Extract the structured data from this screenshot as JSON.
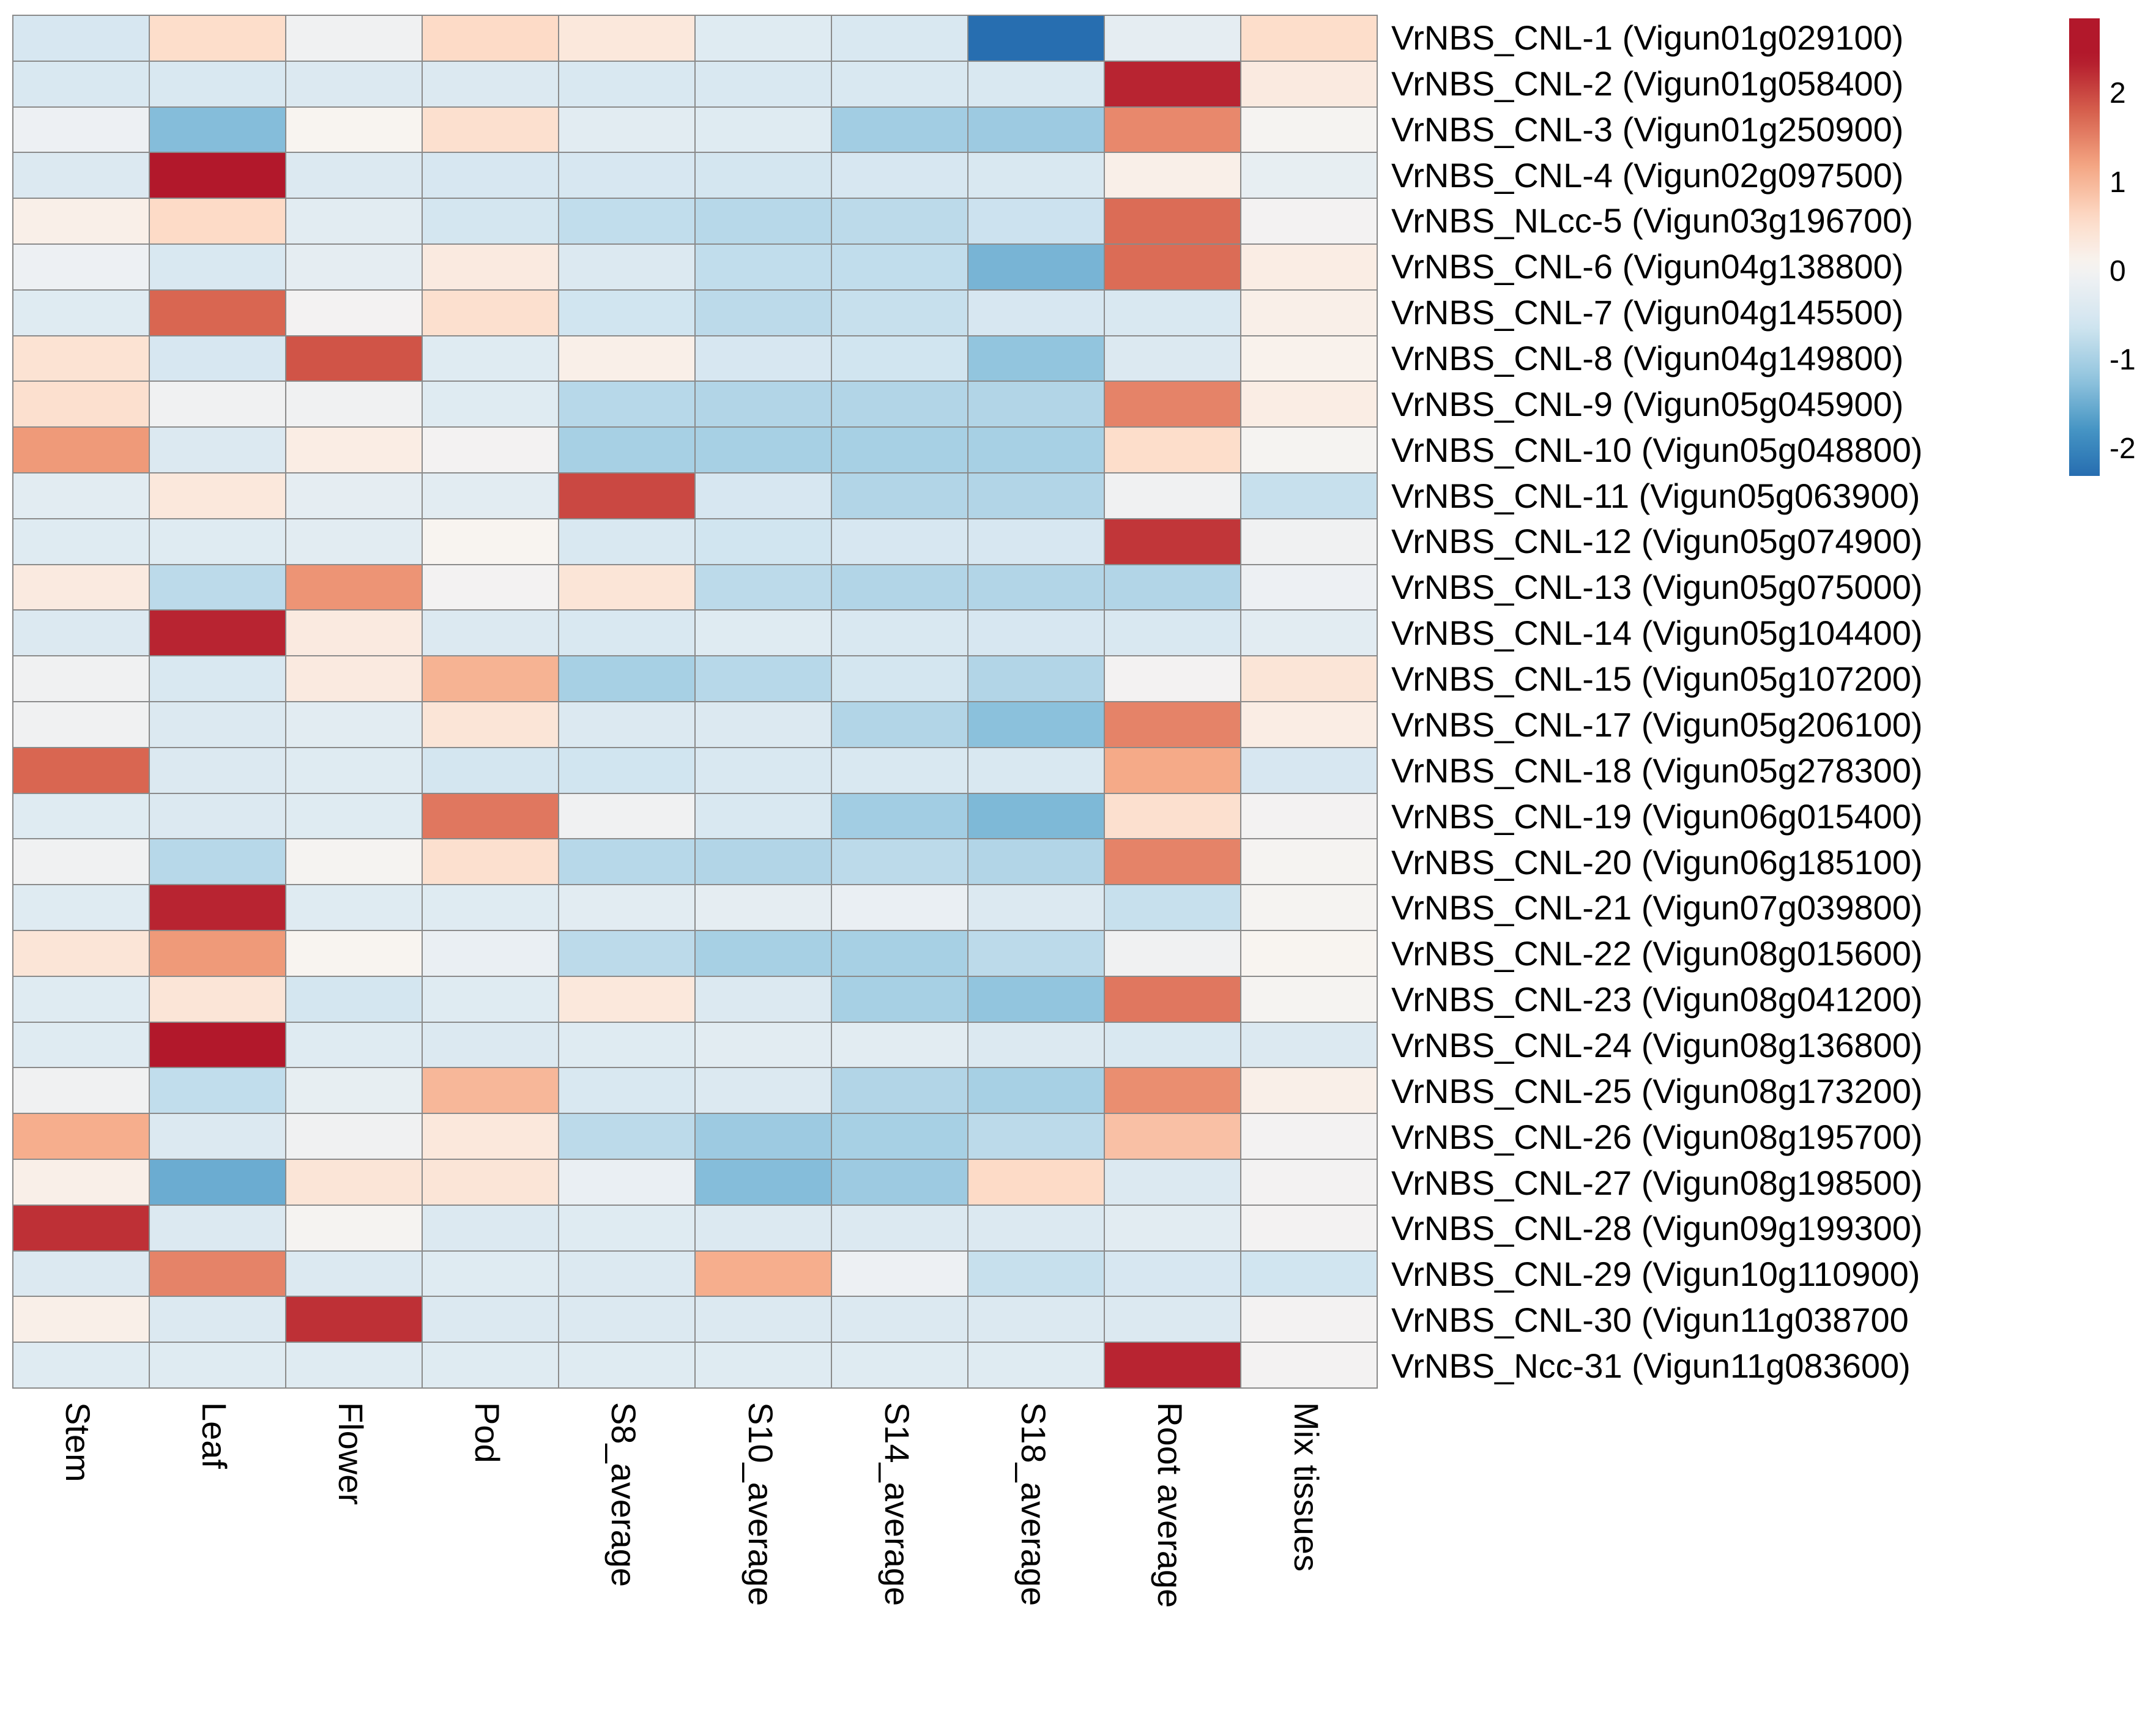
{
  "chart_data": {
    "type": "heatmap",
    "title": "",
    "columns": [
      "Stem",
      "Leaf",
      "Flower",
      "Pod",
      "S8_average",
      "S10_average",
      "S14_average",
      "S18_average",
      "Root average",
      "Mix tissues"
    ],
    "rows": [
      "VrNBS_CNL-1 (Vigun01g029100)",
      "VrNBS_CNL-2 (Vigun01g058400)",
      "VrNBS_CNL-3 (Vigun01g250900)",
      "VrNBS_CNL-4 (Vigun02g097500)",
      "VrNBS_NLcc-5 (Vigun03g196700)",
      "VrNBS_CNL-6 (Vigun04g138800)",
      "VrNBS_CNL-7 (Vigun04g145500)",
      "VrNBS_CNL-8 (Vigun04g149800)",
      "VrNBS_CNL-9  (Vigun05g045900)",
      "VrNBS_CNL-10 (Vigun05g048800)",
      "VrNBS_CNL-11 (Vigun05g063900)",
      "VrNBS_CNL-12 (Vigun05g074900)",
      "VrNBS_CNL-13 (Vigun05g075000)",
      "VrNBS_CNL-14 (Vigun05g104400)",
      "VrNBS_CNL-15 (Vigun05g107200)",
      "VrNBS_CNL-17 (Vigun05g206100)",
      "VrNBS_CNL-18 (Vigun05g278300)",
      "VrNBS_CNL-19 (Vigun06g015400)",
      "VrNBS_CNL-20 (Vigun06g185100)",
      "VrNBS_CNL-21 (Vigun07g039800)",
      "VrNBS_CNL-22 (Vigun08g015600)",
      "VrNBS_CNL-23 (Vigun08g041200)",
      "VrNBS_CNL-24 (Vigun08g136800)",
      "VrNBS_CNL-25 (Vigun08g173200)",
      "VrNBS_CNL-26 (Vigun08g195700)",
      "VrNBS_CNL-27 (Vigun08g198500)",
      "VrNBS_CNL-28 (Vigun09g199300)",
      "VrNBS_CNL-29 (Vigun10g110900)",
      "VrNBS_CNL-30 (Vigun11g038700",
      "VrNBS_Ncc-31 (Vigun11g083600)"
    ],
    "values": [
      [
        -0.5,
        0.55,
        -0.05,
        0.6,
        0.35,
        -0.35,
        -0.45,
        -2.3,
        -0.25,
        0.55
      ],
      [
        -0.45,
        -0.45,
        -0.4,
        -0.4,
        -0.45,
        -0.45,
        -0.45,
        -0.45,
        2.3,
        0.3
      ],
      [
        -0.1,
        -1.3,
        0.1,
        0.5,
        -0.3,
        -0.35,
        -1.05,
        -1.1,
        1.45,
        0.05
      ],
      [
        -0.4,
        2.45,
        -0.4,
        -0.5,
        -0.5,
        -0.55,
        -0.5,
        -0.45,
        0.2,
        -0.2
      ],
      [
        0.2,
        0.6,
        -0.3,
        -0.55,
        -0.75,
        -0.85,
        -0.8,
        -0.65,
        1.7,
        0.0
      ],
      [
        -0.1,
        -0.45,
        -0.25,
        0.3,
        -0.4,
        -0.75,
        -0.75,
        -1.4,
        1.7,
        0.25
      ],
      [
        -0.35,
        1.75,
        0.0,
        0.5,
        -0.6,
        -0.8,
        -0.7,
        -0.5,
        -0.45,
        0.2
      ],
      [
        0.45,
        -0.5,
        1.9,
        -0.35,
        0.2,
        -0.5,
        -0.6,
        -1.2,
        -0.4,
        0.15
      ],
      [
        0.5,
        -0.05,
        -0.05,
        -0.35,
        -0.85,
        -0.9,
        -0.9,
        -0.9,
        1.5,
        0.25
      ],
      [
        1.3,
        -0.4,
        0.25,
        0.0,
        -1.0,
        -1.0,
        -1.0,
        -1.0,
        0.55,
        0.05
      ],
      [
        -0.3,
        0.35,
        -0.25,
        -0.3,
        2.0,
        -0.5,
        -0.9,
        -0.9,
        -0.05,
        -0.7
      ],
      [
        -0.35,
        -0.35,
        -0.3,
        0.1,
        -0.45,
        -0.6,
        -0.5,
        -0.5,
        2.15,
        -0.05
      ],
      [
        0.3,
        -0.8,
        1.35,
        0.0,
        0.4,
        -0.8,
        -0.9,
        -0.9,
        -0.9,
        -0.1
      ],
      [
        -0.4,
        2.3,
        0.3,
        -0.4,
        -0.45,
        -0.35,
        -0.45,
        -0.5,
        -0.45,
        -0.3
      ],
      [
        -0.05,
        -0.45,
        0.3,
        1.05,
        -1.0,
        -0.85,
        -0.55,
        -0.9,
        0.0,
        0.4
      ],
      [
        -0.05,
        -0.4,
        -0.3,
        0.4,
        -0.4,
        -0.4,
        -0.9,
        -1.25,
        1.5,
        0.25
      ],
      [
        1.75,
        -0.4,
        -0.35,
        -0.55,
        -0.6,
        -0.45,
        -0.45,
        -0.45,
        1.15,
        -0.5
      ],
      [
        -0.35,
        -0.4,
        -0.35,
        1.6,
        -0.05,
        -0.45,
        -1.05,
        -1.35,
        0.5,
        0.0
      ],
      [
        -0.05,
        -0.85,
        0.05,
        0.5,
        -0.85,
        -0.9,
        -0.8,
        -0.9,
        1.5,
        0.05
      ],
      [
        -0.35,
        2.3,
        -0.35,
        -0.35,
        -0.3,
        -0.25,
        -0.15,
        -0.4,
        -0.7,
        0.05
      ],
      [
        0.4,
        1.3,
        0.1,
        -0.15,
        -0.8,
        -1.0,
        -1.0,
        -0.8,
        -0.05,
        0.1
      ],
      [
        -0.35,
        0.4,
        -0.55,
        -0.35,
        0.35,
        -0.4,
        -1.0,
        -1.2,
        1.6,
        0.05
      ],
      [
        -0.35,
        2.5,
        -0.35,
        -0.4,
        -0.35,
        -0.3,
        -0.3,
        -0.4,
        -0.45,
        -0.4
      ],
      [
        -0.05,
        -0.75,
        -0.2,
        1.0,
        -0.45,
        -0.4,
        -0.9,
        -1.0,
        1.4,
        0.2
      ],
      [
        1.1,
        -0.4,
        -0.05,
        0.35,
        -0.8,
        -1.1,
        -1.0,
        -0.8,
        0.9,
        0.0
      ],
      [
        0.2,
        -1.5,
        0.4,
        0.4,
        -0.15,
        -1.3,
        -1.1,
        0.6,
        -0.4,
        0.0
      ],
      [
        2.2,
        -0.4,
        0.05,
        -0.4,
        -0.35,
        -0.4,
        -0.4,
        -0.4,
        -0.3,
        0.0
      ],
      [
        -0.4,
        1.5,
        -0.4,
        -0.35,
        -0.4,
        1.1,
        -0.1,
        -0.7,
        -0.5,
        -0.6
      ],
      [
        0.2,
        -0.4,
        2.2,
        -0.4,
        -0.4,
        -0.4,
        -0.4,
        -0.4,
        -0.4,
        0.0
      ],
      [
        -0.35,
        -0.35,
        -0.35,
        -0.35,
        -0.35,
        -0.35,
        -0.35,
        -0.35,
        2.3,
        0.0
      ]
    ],
    "color_scale": {
      "type": "diverging",
      "palette_name": "RdBu",
      "anchors": [
        {
          "value": -2.4,
          "color": "#2166ac"
        },
        {
          "value": -1.8,
          "color": "#4393c3"
        },
        {
          "value": -1.2,
          "color": "#92c5de"
        },
        {
          "value": -0.6,
          "color": "#d1e5f0"
        },
        {
          "value": -0.1,
          "color": "#edf0f3"
        },
        {
          "value": 0.1,
          "color": "#f8f4f0"
        },
        {
          "value": 0.6,
          "color": "#fddbc7"
        },
        {
          "value": 1.2,
          "color": "#f4a582"
        },
        {
          "value": 1.8,
          "color": "#d6604d"
        },
        {
          "value": 2.4,
          "color": "#b2182b"
        }
      ],
      "colorbar_ticks": [
        "2",
        "1",
        "0",
        "-1",
        "-2"
      ],
      "colorbar_tick_values": [
        2,
        1,
        0,
        -1,
        -2
      ],
      "colorbar_value_top": 2.85,
      "colorbar_value_bottom": -2.3
    },
    "grid_line_color": "#8a8a8a",
    "legend_position": "right",
    "xlabel": "",
    "ylabel": ""
  }
}
